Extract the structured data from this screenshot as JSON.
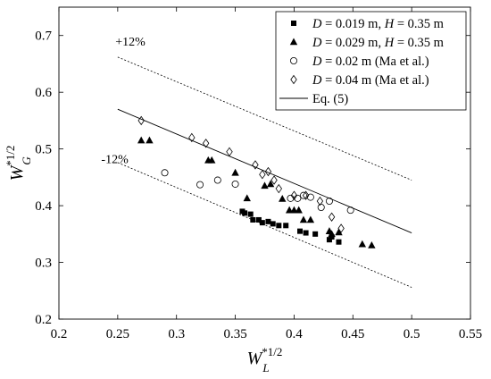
{
  "chart_data": {
    "type": "scatter",
    "xlabel": {
      "base": "W",
      "sup": "*1/2",
      "sub": "L"
    },
    "ylabel": {
      "base": "W",
      "sup": "*1/2",
      "sub": "G"
    },
    "xlim": [
      0.2,
      0.55
    ],
    "ylim": [
      0.2,
      0.75
    ],
    "xticks": [
      0.2,
      0.25,
      0.3,
      0.35,
      0.4,
      0.45,
      0.5,
      0.55
    ],
    "yticks": [
      0.2,
      0.3,
      0.4,
      0.5,
      0.6,
      0.7
    ],
    "xtick_labels": [
      "0.2",
      "0.25",
      "0.3",
      "0.35",
      "0.4",
      "0.45",
      "0.5",
      "0.55"
    ],
    "ytick_labels": [
      "0.2",
      "0.3",
      "0.4",
      "0.5",
      "0.6",
      "0.7"
    ],
    "grid": false,
    "legend_position": "top-right",
    "series": [
      {
        "name": "D = 0.019 m, H = 0.35 m",
        "label_parts": [
          [
            "D",
            true
          ],
          [
            " = 0.019 m, ",
            false
          ],
          [
            "H",
            true
          ],
          [
            " = 0.35 m",
            false
          ]
        ],
        "marker": "square",
        "points": [
          [
            0.356,
            0.39
          ],
          [
            0.358,
            0.387
          ],
          [
            0.363,
            0.385
          ],
          [
            0.365,
            0.375
          ],
          [
            0.37,
            0.375
          ],
          [
            0.373,
            0.37
          ],
          [
            0.378,
            0.372
          ],
          [
            0.382,
            0.368
          ],
          [
            0.387,
            0.365
          ],
          [
            0.393,
            0.365
          ],
          [
            0.405,
            0.355
          ],
          [
            0.41,
            0.352
          ],
          [
            0.418,
            0.35
          ],
          [
            0.43,
            0.34
          ],
          [
            0.432,
            0.345
          ],
          [
            0.438,
            0.336
          ]
        ]
      },
      {
        "name": "D = 0.029 m, H = 0.35 m",
        "label_parts": [
          [
            "D",
            true
          ],
          [
            " = 0.029 m, ",
            false
          ],
          [
            "H",
            true
          ],
          [
            " = 0.35 m",
            false
          ]
        ],
        "marker": "triangle",
        "points": [
          [
            0.27,
            0.515
          ],
          [
            0.277,
            0.515
          ],
          [
            0.327,
            0.48
          ],
          [
            0.33,
            0.48
          ],
          [
            0.35,
            0.458
          ],
          [
            0.36,
            0.413
          ],
          [
            0.375,
            0.435
          ],
          [
            0.38,
            0.438
          ],
          [
            0.39,
            0.412
          ],
          [
            0.396,
            0.392
          ],
          [
            0.4,
            0.392
          ],
          [
            0.404,
            0.392
          ],
          [
            0.408,
            0.375
          ],
          [
            0.414,
            0.375
          ],
          [
            0.43,
            0.355
          ],
          [
            0.432,
            0.35
          ],
          [
            0.438,
            0.353
          ],
          [
            0.458,
            0.332
          ],
          [
            0.466,
            0.33
          ]
        ]
      },
      {
        "name": "D = 0.02 m (Ma et al.)",
        "label_parts": [
          [
            "D",
            true
          ],
          [
            " = 0.02 m (Ma et al.)",
            false
          ]
        ],
        "marker": "circle",
        "points": [
          [
            0.29,
            0.458
          ],
          [
            0.32,
            0.437
          ],
          [
            0.335,
            0.445
          ],
          [
            0.35,
            0.438
          ],
          [
            0.397,
            0.413
          ],
          [
            0.403,
            0.413
          ],
          [
            0.408,
            0.418
          ],
          [
            0.414,
            0.415
          ],
          [
            0.423,
            0.397
          ],
          [
            0.43,
            0.408
          ],
          [
            0.448,
            0.392
          ]
        ]
      },
      {
        "name": "D = 0.04 m (Ma et al.)",
        "label_parts": [
          [
            "D",
            true
          ],
          [
            " = 0.04 m (Ma et al.)",
            false
          ]
        ],
        "marker": "diamond",
        "points": [
          [
            0.27,
            0.55
          ],
          [
            0.313,
            0.52
          ],
          [
            0.325,
            0.51
          ],
          [
            0.345,
            0.495
          ],
          [
            0.367,
            0.472
          ],
          [
            0.373,
            0.455
          ],
          [
            0.378,
            0.46
          ],
          [
            0.383,
            0.445
          ],
          [
            0.387,
            0.43
          ],
          [
            0.4,
            0.418
          ],
          [
            0.41,
            0.418
          ],
          [
            0.422,
            0.408
          ],
          [
            0.432,
            0.38
          ],
          [
            0.44,
            0.36
          ]
        ]
      }
    ],
    "lines": [
      {
        "name": "Eq. (5)",
        "style": "solid",
        "x": [
          0.25,
          0.5
        ],
        "y": [
          0.57,
          0.352
        ]
      },
      {
        "name": "+12%",
        "style": "dotted",
        "x": [
          0.25,
          0.5
        ],
        "y": [
          0.662,
          0.445
        ]
      },
      {
        "name": "-12%",
        "style": "dotted",
        "x": [
          0.25,
          0.5
        ],
        "y": [
          0.476,
          0.256
        ]
      }
    ],
    "legend": [
      {
        "label_parts": [
          [
            "D",
            true
          ],
          [
            " = 0.019 m, ",
            false
          ],
          [
            "H",
            true
          ],
          [
            " = 0.35 m",
            false
          ]
        ],
        "marker": "square"
      },
      {
        "label_parts": [
          [
            "D",
            true
          ],
          [
            " = 0.029 m, ",
            false
          ],
          [
            "H",
            true
          ],
          [
            " = 0.35 m",
            false
          ]
        ],
        "marker": "triangle"
      },
      {
        "label_parts": [
          [
            "D",
            true
          ],
          [
            " = 0.02 m (Ma et al.)",
            false
          ]
        ],
        "marker": "circle"
      },
      {
        "label_parts": [
          [
            "D",
            true
          ],
          [
            " = 0.04 m (Ma et al.)",
            false
          ]
        ],
        "marker": "diamond"
      },
      {
        "label_parts": [
          [
            "Eq. (5)",
            false
          ]
        ],
        "marker": "line"
      }
    ],
    "annotations": [
      {
        "text": "+12%",
        "x": 0.248,
        "y": 0.682
      },
      {
        "text": "-12%",
        "x": 0.236,
        "y": 0.475
      }
    ]
  }
}
